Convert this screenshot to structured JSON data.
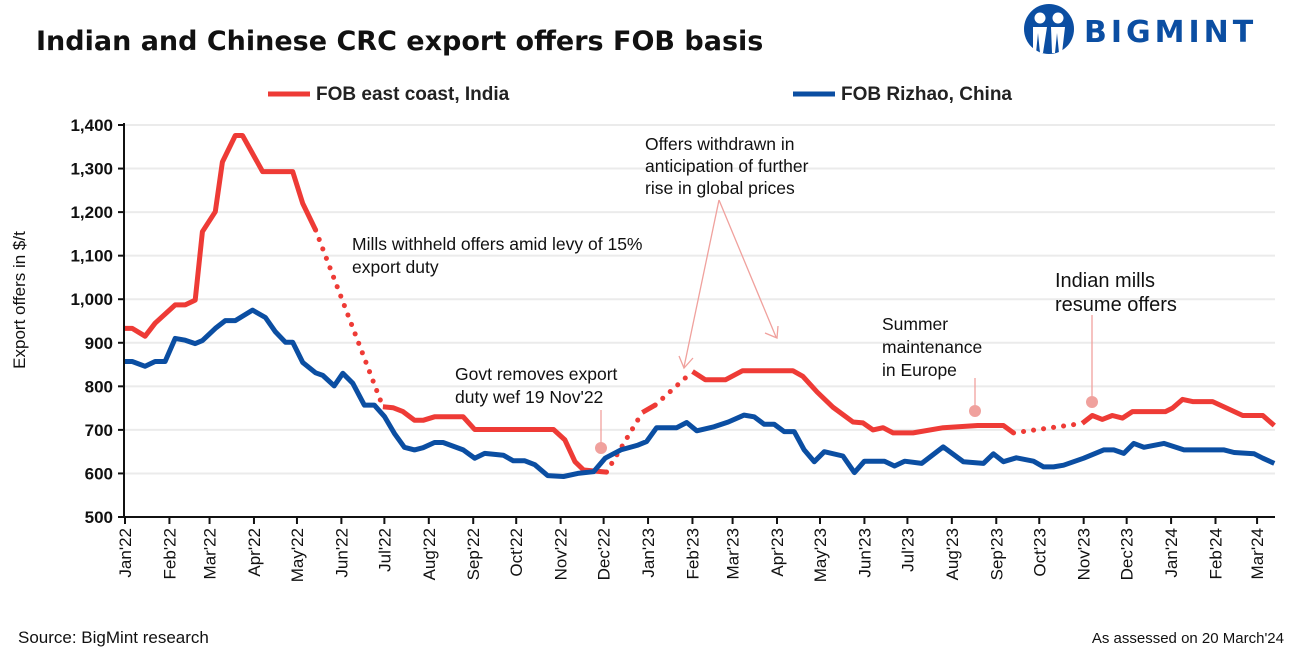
{
  "colors": {
    "india": "#EE3B36",
    "china": "#0B4EA2",
    "annotation": "#F0A19D",
    "grid": "#EBEBEB",
    "logo": "#0B4EA2"
  },
  "logo": {
    "text": "BIGMINT",
    "icon": "bigmint-people-logo-icon"
  },
  "chart_data": {
    "type": "line",
    "title": "Indian and Chinese CRC export offers FOB basis",
    "ylabel": "Export offers in $/t",
    "xlabel": "",
    "ylim": [
      500,
      1400
    ],
    "yticks": [
      "500",
      "600",
      "700",
      "800",
      "900",
      "1,000",
      "1,100",
      "1,200",
      "1,300",
      "1,400"
    ],
    "yticks_values": [
      500,
      600,
      700,
      800,
      900,
      1000,
      1100,
      1200,
      1300,
      1400
    ],
    "xlim": [
      "2022-01-01",
      "2024-03-13"
    ],
    "xticks": [
      {
        "date": "2022-01-01",
        "label": "Jan'22"
      },
      {
        "date": "2022-02-01",
        "label": "Feb'22"
      },
      {
        "date": "2022-03-01",
        "label": "Mar'22"
      },
      {
        "date": "2022-04-01",
        "label": "Apr'22"
      },
      {
        "date": "2022-05-01",
        "label": "May'22"
      },
      {
        "date": "2022-06-01",
        "label": "Jun'22"
      },
      {
        "date": "2022-07-01",
        "label": "Jul'22"
      },
      {
        "date": "2022-08-01",
        "label": "Aug'22"
      },
      {
        "date": "2022-09-01",
        "label": "Sep'22"
      },
      {
        "date": "2022-10-01",
        "label": "Oct'22"
      },
      {
        "date": "2022-11-01",
        "label": "Nov'22"
      },
      {
        "date": "2022-12-01",
        "label": "Dec'22"
      },
      {
        "date": "2023-01-01",
        "label": "Jan'23"
      },
      {
        "date": "2023-02-01",
        "label": "Feb'23"
      },
      {
        "date": "2023-03-01",
        "label": "Mar'23"
      },
      {
        "date": "2023-04-01",
        "label": "Apr'23"
      },
      {
        "date": "2023-05-01",
        "label": "May'23"
      },
      {
        "date": "2023-06-01",
        "label": "Jun'23"
      },
      {
        "date": "2023-07-01",
        "label": "Jul'23"
      },
      {
        "date": "2023-08-01",
        "label": "Aug'23"
      },
      {
        "date": "2023-09-01",
        "label": "Sep'23"
      },
      {
        "date": "2023-10-01",
        "label": "Oct'23"
      },
      {
        "date": "2023-11-01",
        "label": "Nov'23"
      },
      {
        "date": "2023-12-01",
        "label": "Dec'23"
      },
      {
        "date": "2024-01-01",
        "label": "Jan'24"
      },
      {
        "date": "2024-02-01",
        "label": "Feb'24"
      },
      {
        "date": "2024-03-01",
        "label": "Mar'24"
      }
    ],
    "grid": "horizontal",
    "legend_placement": "top",
    "series": [
      {
        "name": "FOB east coast, India",
        "color": "#EE3B36",
        "segments": [
          {
            "style": "solid",
            "points": [
              [
                "2022-01-01",
                933
              ],
              [
                "2022-01-06",
                933
              ],
              [
                "2022-01-15",
                915
              ],
              [
                "2022-01-22",
                945
              ],
              [
                "2022-02-05",
                987
              ],
              [
                "2022-02-12",
                987
              ],
              [
                "2022-02-19",
                998
              ],
              [
                "2022-02-24",
                1155
              ],
              [
                "2022-03-05",
                1201
              ],
              [
                "2022-03-10",
                1315
              ],
              [
                "2022-03-19",
                1376
              ],
              [
                "2022-03-24",
                1376
              ],
              [
                "2022-04-07",
                1293
              ],
              [
                "2022-04-28",
                1293
              ],
              [
                "2022-05-05",
                1220
              ],
              [
                "2022-05-14",
                1159
              ]
            ]
          },
          {
            "style": "dotted",
            "points": [
              [
                "2022-05-14",
                1159
              ],
              [
                "2022-06-30",
                753
              ]
            ]
          },
          {
            "style": "solid",
            "points": [
              [
                "2022-06-30",
                753
              ],
              [
                "2022-07-07",
                751
              ],
              [
                "2022-07-14",
                742
              ],
              [
                "2022-07-22",
                722
              ],
              [
                "2022-07-28",
                722
              ],
              [
                "2022-08-05",
                730
              ],
              [
                "2022-08-25",
                730
              ],
              [
                "2022-09-02",
                701
              ],
              [
                "2022-10-27",
                701
              ],
              [
                "2022-11-04",
                677
              ],
              [
                "2022-11-11",
                627
              ],
              [
                "2022-11-17",
                608
              ],
              [
                "2022-12-03",
                603
              ]
            ]
          },
          {
            "style": "dotted",
            "points": [
              [
                "2022-12-03",
                603
              ],
              [
                "2022-12-28",
                740
              ]
            ]
          },
          {
            "style": "solid",
            "points": [
              [
                "2022-12-28",
                740
              ],
              [
                "2023-01-06",
                757
              ]
            ]
          },
          {
            "style": "dotted",
            "points": [
              [
                "2023-01-06",
                757
              ],
              [
                "2023-02-01",
                834
              ]
            ]
          },
          {
            "style": "solid",
            "points": [
              [
                "2023-02-01",
                834
              ],
              [
                "2023-02-10",
                815
              ],
              [
                "2023-02-24",
                815
              ],
              [
                "2023-03-08",
                836
              ],
              [
                "2023-04-12",
                836
              ],
              [
                "2023-04-19",
                823
              ],
              [
                "2023-04-29",
                787
              ],
              [
                "2023-05-10",
                752
              ],
              [
                "2023-05-24",
                718
              ],
              [
                "2023-05-31",
                716
              ],
              [
                "2023-06-07",
                700
              ],
              [
                "2023-06-14",
                705
              ],
              [
                "2023-06-21",
                693
              ],
              [
                "2023-07-05",
                693
              ],
              [
                "2023-07-26",
                705
              ],
              [
                "2023-08-19",
                710
              ],
              [
                "2023-09-06",
                710
              ],
              [
                "2023-09-13",
                693
              ]
            ]
          },
          {
            "style": "dotted",
            "points": [
              [
                "2023-09-13",
                693
              ],
              [
                "2023-10-31",
                715
              ]
            ]
          },
          {
            "style": "solid",
            "points": [
              [
                "2023-10-31",
                715
              ],
              [
                "2023-11-07",
                733
              ],
              [
                "2023-11-14",
                724
              ],
              [
                "2023-11-21",
                733
              ],
              [
                "2023-11-28",
                727
              ],
              [
                "2023-12-05",
                742
              ],
              [
                "2023-12-28",
                742
              ],
              [
                "2024-01-02",
                750
              ],
              [
                "2024-01-09",
                770
              ],
              [
                "2024-01-16",
                765
              ],
              [
                "2024-01-30",
                765
              ],
              [
                "2024-02-20",
                733
              ],
              [
                "2024-03-05",
                733
              ],
              [
                "2024-03-13",
                710
              ]
            ]
          }
        ]
      },
      {
        "name": "FOB Rizhao, China",
        "color": "#0B4EA2",
        "segments": [
          {
            "style": "solid",
            "points": [
              [
                "2022-01-01",
                857
              ],
              [
                "2022-01-06",
                857
              ],
              [
                "2022-01-15",
                846
              ],
              [
                "2022-01-22",
                857
              ],
              [
                "2022-01-29",
                857
              ],
              [
                "2022-02-05",
                910
              ],
              [
                "2022-02-12",
                906
              ],
              [
                "2022-02-19",
                898
              ],
              [
                "2022-02-24",
                905
              ],
              [
                "2022-03-05",
                933
              ],
              [
                "2022-03-12",
                951
              ],
              [
                "2022-03-19",
                951
              ],
              [
                "2022-03-31",
                975
              ],
              [
                "2022-04-09",
                958
              ],
              [
                "2022-04-16",
                925
              ],
              [
                "2022-04-23",
                901
              ],
              [
                "2022-04-28",
                901
              ],
              [
                "2022-05-05",
                855
              ],
              [
                "2022-05-14",
                831
              ],
              [
                "2022-05-19",
                825
              ],
              [
                "2022-05-27",
                801
              ],
              [
                "2022-06-02",
                830
              ],
              [
                "2022-06-09",
                807
              ],
              [
                "2022-06-17",
                757
              ],
              [
                "2022-06-24",
                757
              ],
              [
                "2022-07-01",
                731
              ],
              [
                "2022-07-08",
                692
              ],
              [
                "2022-07-15",
                660
              ],
              [
                "2022-07-22",
                654
              ],
              [
                "2022-07-28",
                659
              ],
              [
                "2022-08-05",
                671
              ],
              [
                "2022-08-11",
                671
              ],
              [
                "2022-08-25",
                654
              ],
              [
                "2022-09-02",
                635
              ],
              [
                "2022-09-09",
                646
              ],
              [
                "2022-09-22",
                642
              ],
              [
                "2022-09-29",
                629
              ],
              [
                "2022-10-07",
                629
              ],
              [
                "2022-10-14",
                620
              ],
              [
                "2022-10-23",
                595
              ],
              [
                "2022-11-03",
                593
              ],
              [
                "2022-11-13",
                600
              ],
              [
                "2022-11-24",
                604
              ],
              [
                "2022-12-02",
                635
              ],
              [
                "2022-12-13",
                654
              ],
              [
                "2022-12-25",
                665
              ],
              [
                "2022-12-31",
                673
              ],
              [
                "2023-01-07",
                705
              ],
              [
                "2023-01-21",
                705
              ],
              [
                "2023-01-28",
                717
              ],
              [
                "2023-02-04",
                698
              ],
              [
                "2023-02-16",
                707
              ],
              [
                "2023-02-26",
                718
              ],
              [
                "2023-03-09",
                734
              ],
              [
                "2023-03-16",
                730
              ],
              [
                "2023-03-23",
                713
              ],
              [
                "2023-03-30",
                713
              ],
              [
                "2023-04-06",
                696
              ],
              [
                "2023-04-13",
                696
              ],
              [
                "2023-04-20",
                654
              ],
              [
                "2023-04-27",
                627
              ],
              [
                "2023-05-04",
                650
              ],
              [
                "2023-05-17",
                640
              ],
              [
                "2023-05-25",
                602
              ],
              [
                "2023-06-01",
                628
              ],
              [
                "2023-06-15",
                628
              ],
              [
                "2023-06-22",
                617
              ],
              [
                "2023-06-29",
                628
              ],
              [
                "2023-07-11",
                623
              ],
              [
                "2023-07-26",
                661
              ],
              [
                "2023-08-09",
                627
              ],
              [
                "2023-08-23",
                623
              ],
              [
                "2023-08-30",
                645
              ],
              [
                "2023-09-06",
                627
              ],
              [
                "2023-09-15",
                636
              ],
              [
                "2023-09-27",
                628
              ],
              [
                "2023-10-04",
                615
              ],
              [
                "2023-10-11",
                615
              ],
              [
                "2023-10-18",
                619
              ],
              [
                "2023-11-01",
                635
              ],
              [
                "2023-11-15",
                654
              ],
              [
                "2023-11-22",
                654
              ],
              [
                "2023-11-29",
                646
              ],
              [
                "2023-12-06",
                669
              ],
              [
                "2023-12-13",
                660
              ],
              [
                "2023-12-27",
                669
              ],
              [
                "2024-01-10",
                654
              ],
              [
                "2024-02-07",
                654
              ],
              [
                "2024-02-14",
                648
              ],
              [
                "2024-02-28",
                645
              ],
              [
                "2024-03-05",
                635
              ],
              [
                "2024-03-13",
                623
              ]
            ]
          }
        ]
      }
    ],
    "annotations": [
      {
        "lines": [
          "Mills withheld offers amid levy of 15%",
          "export duty"
        ]
      },
      {
        "lines": [
          "Govt removes export",
          "duty wef 19 Nov'22"
        ]
      },
      {
        "lines": [
          "Offers withdrawn in",
          "anticipation of further",
          "rise in global prices"
        ]
      },
      {
        "lines": [
          "Summer",
          "maintenance",
          "in Europe"
        ]
      },
      {
        "lines": [
          "Indian mills",
          "resume offers"
        ]
      }
    ]
  },
  "footer": {
    "source": "Source: BigMint research",
    "assessed": "As assessed on 20 March'24"
  }
}
